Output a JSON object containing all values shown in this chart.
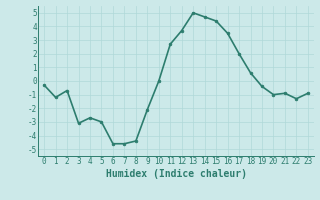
{
  "x": [
    0,
    1,
    2,
    3,
    4,
    5,
    6,
    7,
    8,
    9,
    10,
    11,
    12,
    13,
    14,
    15,
    16,
    17,
    18,
    19,
    20,
    21,
    22,
    23
  ],
  "y": [
    -0.3,
    -1.2,
    -0.7,
    -3.1,
    -2.7,
    -3.0,
    -4.6,
    -4.6,
    -4.4,
    -2.1,
    0.0,
    2.7,
    3.7,
    5.0,
    4.7,
    4.4,
    3.5,
    2.0,
    0.6,
    -0.4,
    -1.0,
    -0.9,
    -1.3,
    -0.9
  ],
  "line_color": "#2d7d6e",
  "marker": "o",
  "marker_size": 2.0,
  "bg_color": "#cce9e9",
  "grid_color": "#b0d8d8",
  "xlabel": "Humidex (Indice chaleur)",
  "xlim": [
    -0.5,
    23.5
  ],
  "ylim": [
    -5.5,
    5.5
  ],
  "yticks": [
    -5,
    -4,
    -3,
    -2,
    -1,
    0,
    1,
    2,
    3,
    4,
    5
  ],
  "xticks": [
    0,
    1,
    2,
    3,
    4,
    5,
    6,
    7,
    8,
    9,
    10,
    11,
    12,
    13,
    14,
    15,
    16,
    17,
    18,
    19,
    20,
    21,
    22,
    23
  ],
  "tick_label_size": 5.5,
  "xlabel_fontsize": 7.0,
  "line_width": 1.2
}
